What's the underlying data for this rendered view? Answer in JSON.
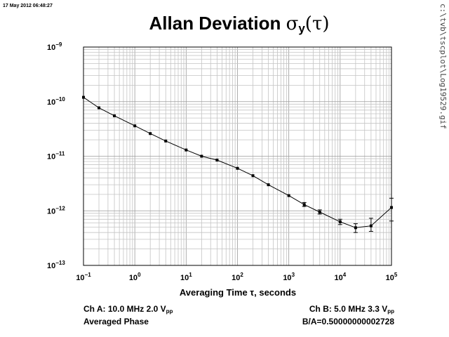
{
  "header": {
    "timestamp": "17 May 2012 06:48:27",
    "title_text": "Allan Deviation",
    "title_sigma": "σ",
    "title_sub": "y",
    "title_arg": "(τ)",
    "file_path": "c:\\tvb\\tscplot\\Log19529.gif"
  },
  "chart_data": {
    "type": "line",
    "title": "Allan Deviation σy(τ)",
    "xlabel": "Averaging Time τ, seconds",
    "ylabel": "",
    "x_scale": "log",
    "y_scale": "log",
    "xlim": [
      0.1,
      100000
    ],
    "ylim": [
      1e-13,
      1e-09
    ],
    "grid": true,
    "x_tick_labels": [
      {
        "base": "10",
        "exp": "−1"
      },
      {
        "base": "10",
        "exp": "0"
      },
      {
        "base": "10",
        "exp": "1"
      },
      {
        "base": "10",
        "exp": "2"
      },
      {
        "base": "10",
        "exp": "3"
      },
      {
        "base": "10",
        "exp": "4"
      },
      {
        "base": "10",
        "exp": "5"
      }
    ],
    "y_tick_labels": [
      {
        "base": "10",
        "exp": "−9"
      },
      {
        "base": "10",
        "exp": "−10"
      },
      {
        "base": "10",
        "exp": "−11"
      },
      {
        "base": "10",
        "exp": "−12"
      },
      {
        "base": "10",
        "exp": "−13"
      }
    ],
    "series": [
      {
        "x": [
          0.1,
          0.2,
          0.4,
          1,
          2,
          4,
          10,
          20,
          40,
          100,
          200,
          400,
          1000,
          2000,
          4000,
          10000,
          20000,
          40000,
          100000
        ],
        "y": [
          1.2e-10,
          7.7e-11,
          5.5e-11,
          3.6e-11,
          2.6e-11,
          1.9e-11,
          1.3e-11,
          1e-11,
          8.5e-12,
          6e-12,
          4.4e-12,
          3e-12,
          1.9e-12,
          1.3e-12,
          9.5e-13,
          6.3e-13,
          4.9e-13,
          5.3e-13,
          1.15e-12
        ],
        "y_low": [
          null,
          null,
          null,
          null,
          null,
          null,
          null,
          null,
          null,
          null,
          null,
          null,
          null,
          1.2e-12,
          8.7e-13,
          5.6e-13,
          4e-13,
          4.2e-13,
          6.5e-13
        ],
        "y_high": [
          null,
          null,
          null,
          null,
          null,
          null,
          null,
          null,
          null,
          null,
          null,
          null,
          null,
          1.42e-12,
          1.04e-12,
          7e-13,
          5.8e-13,
          7.3e-13,
          1.7e-12
        ]
      }
    ]
  },
  "footer": {
    "ch_a": "Ch A: 10.0 MHz 2.0 V",
    "ch_a_sub": "pp",
    "mode": "Averaged Phase",
    "ch_b": "Ch B: 5.0 MHz 3.3 V",
    "ch_b_sub": "pp",
    "ratio": "B/A=0.50000000002728"
  }
}
